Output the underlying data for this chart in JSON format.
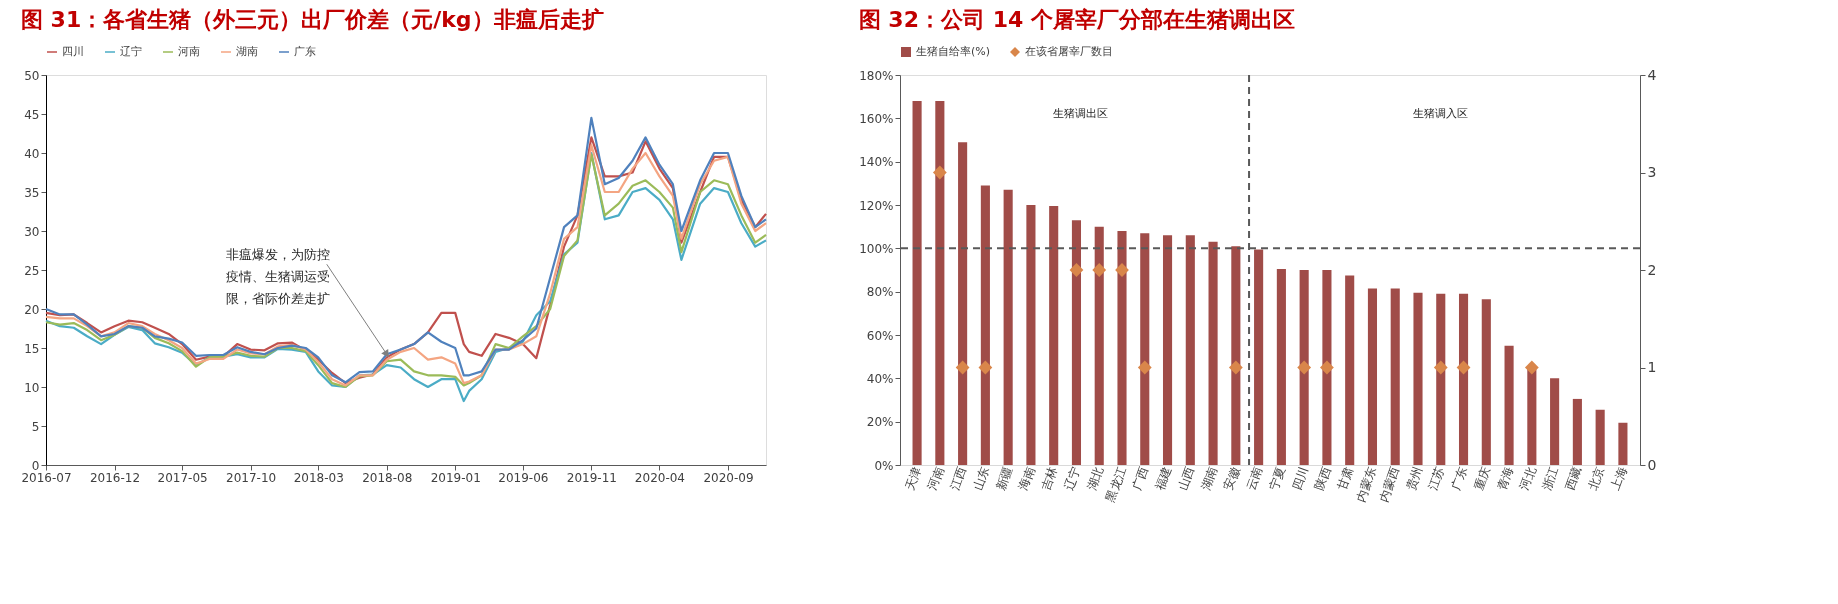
{
  "chart_data": [
    {
      "type": "line",
      "title": "图 31：各省生猪（外三元）出厂价差（元/kg）非瘟后走扩",
      "legend": "top",
      "x": [
        "2016-07-01",
        "2016-08-01",
        "2016-09-01",
        "2016-10-01",
        "2016-11-01",
        "2016-12-01",
        "2017-01-01",
        "2017-02-01",
        "2017-03-01",
        "2017-04-01",
        "2017-05-01",
        "2017-06-01",
        "2017-07-01",
        "2017-08-01",
        "2017-09-01",
        "2017-10-01",
        "2017-11-01",
        "2017-12-01",
        "2018-01-01",
        "2018-02-01",
        "2018-03-01",
        "2018-04-01",
        "2018-05-01",
        "2018-06-01",
        "2018-07-01",
        "2018-08-01",
        "2018-09-01",
        "2018-10-01",
        "2018-11-01",
        "2018-12-01",
        "2019-01-01",
        "2019-01-20",
        "2019-02-01",
        "2019-03-01",
        "2019-04-01",
        "2019-05-01",
        "2019-06-01",
        "2019-07-01",
        "2019-08-01",
        "2019-09-01",
        "2019-10-01",
        "2019-11-01",
        "2019-12-01",
        "2020-01-01",
        "2020-02-01",
        "2020-03-01",
        "2020-04-01",
        "2020-05-01",
        "2020-05-20",
        "2020-07-01",
        "2020-08-01",
        "2020-09-01",
        "2020-10-01",
        "2020-11-01",
        "2020-11-25"
      ],
      "series": [
        {
          "name": "四川",
          "color": "#c0504d",
          "values": [
            19.5,
            19.2,
            19.3,
            18.2,
            17.0,
            17.8,
            18.5,
            18.3,
            17.6,
            16.8,
            15.5,
            13.5,
            13.9,
            13.9,
            15.5,
            14.8,
            14.7,
            15.6,
            15.7,
            14.7,
            13.5,
            11.8,
            10.5,
            11.2,
            11.6,
            13.8,
            14.8,
            15.5,
            17.0,
            19.5,
            19.5,
            15.5,
            14.5,
            14.0,
            16.8,
            16.3,
            15.5,
            13.7,
            20.5,
            28,
            32,
            42,
            37,
            37,
            37.5,
            41.5,
            38,
            35.5,
            28.5,
            35,
            39.5,
            39.5,
            34,
            30.5,
            32.2
          ]
        },
        {
          "name": "辽宁",
          "color": "#4bacc6",
          "values": [
            18.5,
            17.8,
            17.6,
            16.5,
            15.5,
            16.7,
            17.7,
            17.3,
            15.6,
            15.1,
            14.4,
            12.8,
            13.8,
            13.9,
            14.2,
            13.8,
            13.8,
            14.9,
            14.8,
            14.5,
            12.0,
            10.2,
            10.0,
            11.5,
            11.6,
            12.8,
            12.5,
            11.0,
            10.0,
            11.0,
            11.0,
            8.2,
            9.5,
            11.0,
            14.5,
            15.0,
            15.8,
            19.2,
            21.0,
            27,
            28.5,
            40,
            31.5,
            32,
            35,
            35.5,
            34,
            31.5,
            26.3,
            33.5,
            35.5,
            35,
            31,
            28,
            28.8
          ]
        },
        {
          "name": "河南",
          "color": "#9bbb59",
          "values": [
            18.3,
            18.0,
            18.2,
            17.3,
            16.0,
            16.7,
            17.8,
            17.6,
            16.3,
            15.6,
            14.6,
            12.6,
            13.8,
            13.9,
            14.4,
            14.0,
            13.9,
            15.0,
            15.0,
            14.6,
            12.8,
            10.5,
            10.0,
            11.4,
            11.5,
            13.3,
            13.5,
            12.0,
            11.5,
            11.5,
            11.3,
            10.2,
            10.5,
            11.5,
            15.5,
            15.0,
            16.5,
            17.8,
            20.0,
            26.8,
            28.8,
            39.8,
            32,
            33.5,
            35.8,
            36.5,
            35,
            33,
            27.3,
            35,
            36.5,
            36,
            32,
            28.5,
            29.5
          ]
        },
        {
          "name": "湖南",
          "color": "#f4a582",
          "values": [
            19,
            18.8,
            18.8,
            17.8,
            16.5,
            17.0,
            18.2,
            17.8,
            16.8,
            16.0,
            15.0,
            13.0,
            13.6,
            13.6,
            14.8,
            14.3,
            14.2,
            15.2,
            15.4,
            14.8,
            13.2,
            11.0,
            10.2,
            11.5,
            11.5,
            13.5,
            14.5,
            15.0,
            13.5,
            13.8,
            13.0,
            10.5,
            10.7,
            11.5,
            14.8,
            14.8,
            15.5,
            16.5,
            22.0,
            29,
            30.5,
            41,
            35,
            35,
            38,
            40,
            37,
            34.5,
            29,
            36,
            39,
            39.5,
            33.5,
            30,
            31
          ]
        },
        {
          "name": "广东",
          "color": "#4f81bd",
          "values": [
            20,
            19.3,
            19.3,
            18.0,
            16.5,
            16.8,
            17.8,
            17.6,
            16.5,
            16.2,
            15.7,
            14.0,
            14.1,
            14.1,
            15.1,
            14.5,
            14.2,
            15.0,
            15.3,
            15.0,
            13.8,
            11.5,
            10.6,
            11.9,
            12.0,
            14.2,
            14.8,
            15.5,
            17.0,
            15.8,
            15.0,
            11.5,
            11.5,
            12.0,
            14.8,
            14.8,
            16.0,
            17.5,
            24.0,
            30.5,
            32,
            44.5,
            36,
            36.8,
            39,
            42,
            38.5,
            36,
            30,
            36.5,
            40,
            40,
            34.5,
            30.5,
            31.5
          ]
        }
      ],
      "xlim": [
        "2016-07-01",
        "2020-11-25"
      ],
      "xticks": [
        {
          "value": "2016-07-01",
          "label": "2016-07"
        },
        {
          "value": "2016-12-01",
          "label": "2016-12"
        },
        {
          "value": "2017-05-01",
          "label": "2017-05"
        },
        {
          "value": "2017-10-01",
          "label": "2017-10"
        },
        {
          "value": "2018-03-01",
          "label": "2018-03"
        },
        {
          "value": "2018-08-01",
          "label": "2018-08"
        },
        {
          "value": "2019-01-01",
          "label": "2019-01"
        },
        {
          "value": "2019-06-01",
          "label": "2019-06"
        },
        {
          "value": "2019-11-01",
          "label": "2019-11"
        },
        {
          "value": "2020-04-01",
          "label": "2020-04"
        },
        {
          "value": "2020-09-01",
          "label": "2020-09"
        }
      ],
      "ylim": [
        0,
        50
      ],
      "yticks": [
        0,
        5,
        10,
        15,
        20,
        25,
        30,
        35,
        40,
        45,
        50
      ],
      "annotations": [
        {
          "text": "非瘟爆发，为防控疫情、生猪调运受限，省际价差走扩",
          "x": "2018-08-01",
          "y": 14.2
        }
      ]
    },
    {
      "type": "bar",
      "title": "图 32：公司 14 个屠宰厂分部在生猪调出区",
      "legend": "top",
      "categories": [
        "天津",
        "河南",
        "江西",
        "山东",
        "新疆",
        "海南",
        "吉林",
        "辽宁",
        "湖北",
        "黑龙江",
        "广西",
        "福建",
        "山西",
        "湖南",
        "安徽",
        "云南",
        "宁夏",
        "四川",
        "陕西",
        "甘肃",
        "内蒙东",
        "内蒙西",
        "贵州",
        "江苏",
        "广东",
        "重庆",
        "青海",
        "河北",
        "浙江",
        "西藏",
        "北京",
        "上海"
      ],
      "series": [
        {
          "name": "生猪自给率(%)",
          "color": "#a04c48",
          "values": [
            168,
            168,
            149,
            129,
            127,
            120,
            119.5,
            113,
            110,
            108,
            107,
            106,
            106,
            103,
            101,
            99.5,
            90.5,
            90,
            90,
            87.5,
            81.5,
            81.5,
            79.5,
            79,
            79,
            76.5,
            55,
            45,
            40,
            30.5,
            25.5,
            19.5
          ]
        },
        {
          "name": "在该省屠宰厂数目",
          "type": "scatter",
          "axis": "y2",
          "marker": "diamond",
          "color": "#d9864a",
          "values": [
            null,
            3,
            1,
            1,
            null,
            null,
            null,
            2,
            2,
            2,
            1,
            null,
            null,
            null,
            1,
            null,
            null,
            1,
            1,
            null,
            null,
            null,
            null,
            1,
            1,
            null,
            null,
            1,
            null,
            null,
            null,
            null
          ]
        }
      ],
      "ylim": [
        0,
        180
      ],
      "yticks": [
        {
          "value": 0,
          "label": "0%"
        },
        {
          "value": 20,
          "label": "20%"
        },
        {
          "value": 40,
          "label": "40%"
        },
        {
          "value": 60,
          "label": "60%"
        },
        {
          "value": 80,
          "label": "80%"
        },
        {
          "value": 100,
          "label": "100%"
        },
        {
          "value": 120,
          "label": "120%"
        },
        {
          "value": 140,
          "label": "140%"
        },
        {
          "value": 160,
          "label": "160%"
        },
        {
          "value": 180,
          "label": "180%"
        }
      ],
      "y2lim": [
        0,
        4
      ],
      "y2ticks": [
        0,
        1,
        2,
        3,
        4
      ],
      "ref_lines": [
        {
          "axis": "y",
          "value": 100,
          "color": "#595959",
          "line_style": "dashed"
        },
        {
          "axis": "x",
          "value": "云南",
          "color": "#595959",
          "line_style": "dashed"
        }
      ],
      "annotations": [
        "生猪调出区",
        "生猪调入区"
      ]
    }
  ]
}
